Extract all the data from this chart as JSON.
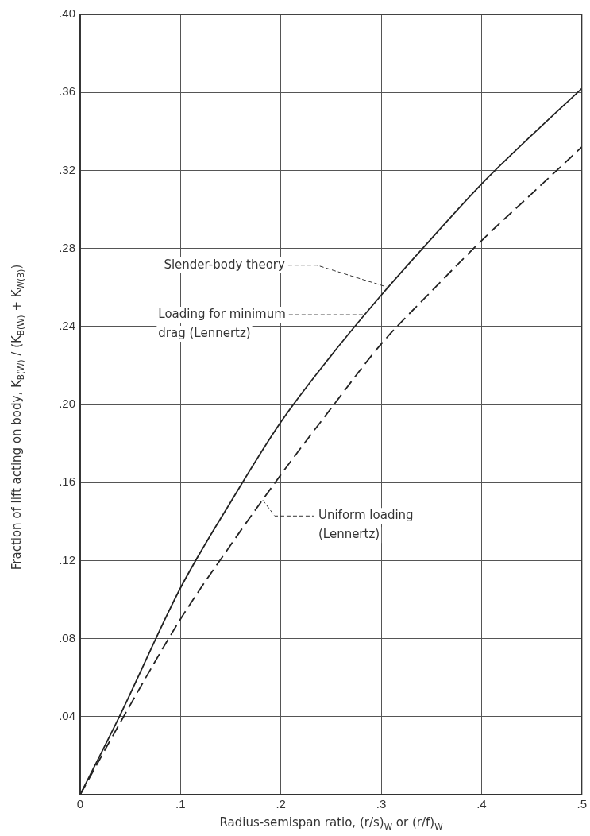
{
  "chart_data": {
    "type": "line",
    "xlabel": "Radius-semispan ratio, (r/s)$_{W}$ or (r/f)$_{W}$",
    "ylabel": "Fraction of lift acting on body, K$_{B(W)}$ / (K$_{B(W)}$ + K$_{W(B)}$)",
    "x": [
      0,
      0.04,
      0.1,
      0.15,
      0.2,
      0.25,
      0.3,
      0.35,
      0.4,
      0.45,
      0.5
    ],
    "series": [
      {
        "color": "#222222",
        "line_style": "solid",
        "values": [
          0,
          0.041,
          0.106,
          0.15,
          0.191,
          0.225,
          0.256,
          0.285,
          0.313,
          0.338,
          0.362
        ]
      },
      {
        "color": "#222222",
        "line_style": "dashed",
        "values": [
          0,
          0.037,
          0.09,
          0.128,
          0.164,
          0.198,
          0.231,
          0.258,
          0.284,
          0.308,
          0.332
        ]
      }
    ],
    "xlim": [
      0,
      0.5
    ],
    "xticks": [
      {
        "value": 0,
        "label": "0"
      },
      {
        "value": 0.1,
        "label": ".1"
      },
      {
        "value": 0.2,
        "label": ".2"
      },
      {
        "value": 0.3,
        "label": ".3"
      },
      {
        "value": 0.4,
        "label": ".4"
      },
      {
        "value": 0.5,
        "label": ".5"
      }
    ],
    "ylim": [
      0,
      0.4
    ],
    "yticks": [
      {
        "value": 0,
        "label": null
      },
      {
        "value": 0.04,
        "label": ".04"
      },
      {
        "value": 0.08,
        "label": ".08"
      },
      {
        "value": 0.12,
        "label": ".12"
      },
      {
        "value": 0.16,
        "label": ".16"
      },
      {
        "value": 0.2,
        "label": ".20"
      },
      {
        "value": 0.24,
        "label": ".24"
      },
      {
        "value": 0.28,
        "label": ".28"
      },
      {
        "value": 0.32,
        "label": ".32"
      },
      {
        "value": 0.36,
        "label": ".36"
      },
      {
        "value": 0.4,
        "label": ".40"
      }
    ],
    "annotations": [
      {
        "text": "Slender-body theory",
        "x": 0.307,
        "y": 0.26
      },
      {
        "text": "Loading for minimum drag (Lennertz)",
        "x": 0.284,
        "y": 0.246
      },
      {
        "text": "Uniform loading (Lennertz)",
        "x": 0.182,
        "y": 0.151
      }
    ],
    "grid": true,
    "legend": false,
    "marker": "none"
  }
}
